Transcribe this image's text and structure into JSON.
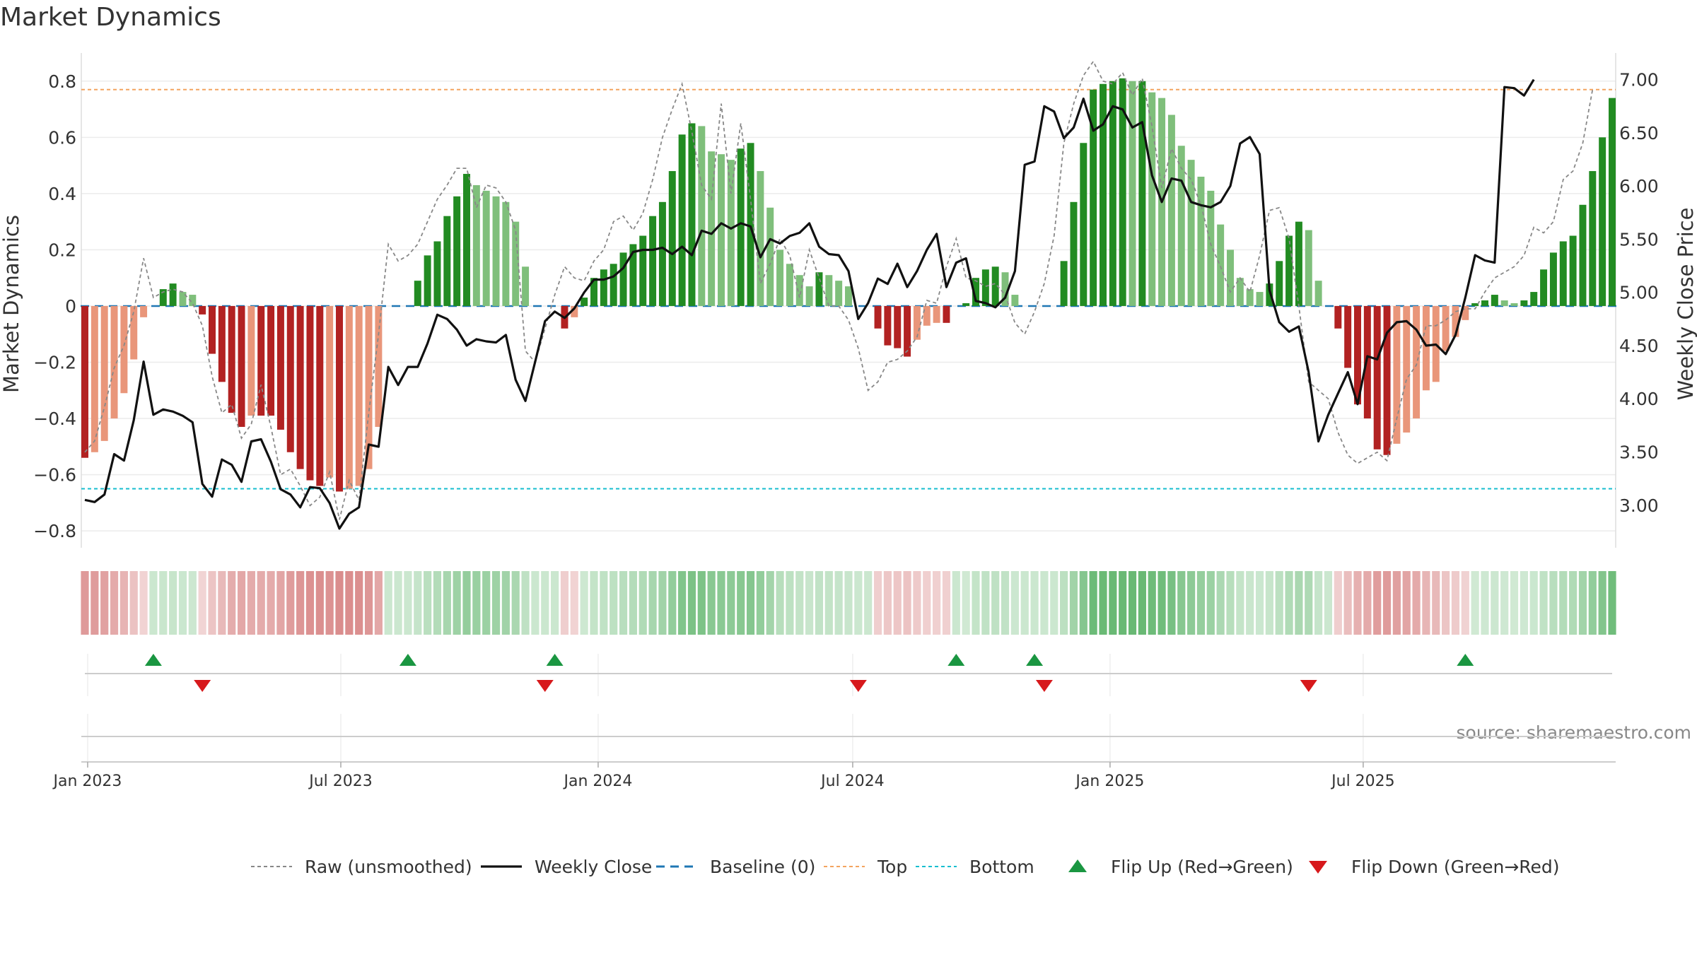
{
  "chart_data": {
    "type": "bar",
    "title": "Market Dynamics",
    "source_text": "source: sharemaestro.com",
    "left_axis": {
      "label": "Market Dynamics",
      "ticks": [
        0.8,
        0.6,
        0.4,
        0.2,
        0,
        -0.2,
        -0.4,
        -0.6,
        -0.8
      ],
      "tick_labels": [
        "0.8",
        "0.6",
        "0.4",
        "0.2",
        "0",
        "−0.2",
        "−0.4",
        "−0.6",
        "−0.8"
      ],
      "range": [
        -0.86,
        0.9
      ]
    },
    "right_axis": {
      "label": "Weekly Close Price",
      "ticks": [
        7.0,
        6.5,
        6.0,
        5.5,
        5.0,
        4.5,
        4.0,
        3.5,
        3.0
      ],
      "tick_labels": [
        "7.00",
        "6.50",
        "6.00",
        "5.50",
        "5.00",
        "4.50",
        "4.00",
        "3.50",
        "3.00"
      ],
      "range": [
        2.6,
        7.25
      ]
    },
    "x_axis": {
      "start": "2022-12-30",
      "step_days": 7,
      "ticks": [
        {
          "date": "2023-01-01",
          "label": "Jan 2023"
        },
        {
          "date": "2023-07-01",
          "label": "Jul 2023"
        },
        {
          "date": "2024-01-01",
          "label": "Jan 2024"
        },
        {
          "date": "2024-07-01",
          "label": "Jul 2024"
        },
        {
          "date": "2025-01-01",
          "label": "Jan 2025"
        },
        {
          "date": "2025-07-01",
          "label": "Jul 2025"
        }
      ]
    },
    "reference_lines": {
      "baseline": 0,
      "top": 0.77,
      "bottom": -0.65
    },
    "colors": {
      "strong_green": "#228b22",
      "light_green": "#7fbf7b",
      "strong_red": "#b22222",
      "light_red": "#e9967a",
      "raw": "#888888",
      "close": "#111111",
      "baseline": "#1f77b4",
      "top": "#f4a460",
      "bottom": "#17becf",
      "flip_up": "#1a9641",
      "flip_down": "#d7191c"
    },
    "series": [
      {
        "name": "Market Dynamics",
        "values": [
          -0.54,
          -0.52,
          -0.48,
          -0.4,
          -0.31,
          -0.19,
          -0.04,
          0.0,
          0.06,
          0.08,
          0.05,
          0.04,
          -0.03,
          -0.17,
          -0.27,
          -0.38,
          -0.43,
          -0.39,
          -0.39,
          -0.39,
          -0.44,
          -0.52,
          -0.58,
          -0.62,
          -0.64,
          -0.61,
          -0.66,
          -0.65,
          -0.64,
          -0.58,
          -0.43,
          0.0,
          0.0,
          0.0,
          0.09,
          0.18,
          0.23,
          0.32,
          0.39,
          0.47,
          0.43,
          0.41,
          0.39,
          0.37,
          0.3,
          0.14,
          0.0,
          0.0,
          0.0,
          -0.08,
          -0.04,
          0.03,
          0.1,
          0.13,
          0.15,
          0.19,
          0.22,
          0.25,
          0.32,
          0.37,
          0.48,
          0.61,
          0.65,
          0.64,
          0.55,
          0.54,
          0.52,
          0.56,
          0.58,
          0.48,
          0.35,
          0.2,
          0.15,
          0.11,
          0.07,
          0.12,
          0.11,
          0.09,
          0.07,
          0.0,
          0.0,
          -0.08,
          -0.14,
          -0.15,
          -0.18,
          -0.12,
          -0.07,
          -0.06,
          -0.06,
          0.0,
          0.01,
          0.1,
          0.13,
          0.14,
          0.12,
          0.04,
          0.0,
          0.0,
          0.0,
          0.0,
          0.16,
          0.37,
          0.58,
          0.77,
          0.79,
          0.8,
          0.81,
          0.8,
          0.8,
          0.76,
          0.74,
          0.68,
          0.57,
          0.52,
          0.46,
          0.41,
          0.29,
          0.2,
          0.1,
          0.06,
          0.05,
          0.08,
          0.16,
          0.25,
          0.3,
          0.27,
          0.09,
          0.0,
          -0.08,
          -0.22,
          -0.35,
          -0.4,
          -0.51,
          -0.53,
          -0.49,
          -0.45,
          -0.4,
          -0.3,
          -0.27,
          -0.16,
          -0.11,
          -0.05,
          0.01,
          0.02,
          0.04,
          0.02,
          0.01,
          0.02,
          0.05,
          0.13,
          0.19,
          0.23,
          0.25,
          0.36,
          0.48,
          0.6,
          0.74
        ]
      },
      {
        "name": "Raw (unsmoothed)",
        "values": [
          -0.52,
          -0.48,
          -0.36,
          -0.22,
          -0.14,
          -0.02,
          0.17,
          0.03,
          0.05,
          0.06,
          0.05,
          0.01,
          -0.07,
          -0.25,
          -0.38,
          -0.35,
          -0.47,
          -0.42,
          -0.28,
          -0.43,
          -0.6,
          -0.58,
          -0.64,
          -0.71,
          -0.68,
          -0.59,
          -0.76,
          -0.62,
          -0.69,
          -0.38,
          -0.1,
          0.22,
          0.16,
          0.18,
          0.22,
          0.3,
          0.38,
          0.43,
          0.49,
          0.49,
          0.35,
          0.43,
          0.42,
          0.37,
          0.27,
          -0.16,
          -0.2,
          -0.08,
          0.04,
          0.14,
          0.1,
          0.09,
          0.16,
          0.2,
          0.3,
          0.32,
          0.27,
          0.33,
          0.45,
          0.6,
          0.7,
          0.79,
          0.62,
          0.43,
          0.38,
          0.72,
          0.4,
          0.65,
          0.38,
          0.08,
          0.15,
          0.24,
          0.18,
          0.03,
          0.2,
          0.1,
          0.0,
          0.0,
          -0.05,
          -0.15,
          -0.3,
          -0.27,
          -0.2,
          -0.19,
          -0.16,
          -0.11,
          0.02,
          0.01,
          0.14,
          0.24,
          0.1,
          0.09,
          0.07,
          0.08,
          0.04,
          -0.06,
          -0.1,
          -0.02,
          0.08,
          0.25,
          0.58,
          0.72,
          0.82,
          0.87,
          0.8,
          0.79,
          0.83,
          0.75,
          0.81,
          0.64,
          0.42,
          0.56,
          0.49,
          0.45,
          0.36,
          0.22,
          0.14,
          0.05,
          0.1,
          0.05,
          0.18,
          0.34,
          0.35,
          0.24,
          0.0,
          -0.27,
          -0.3,
          -0.33,
          -0.45,
          -0.53,
          -0.56,
          -0.54,
          -0.52,
          -0.55,
          -0.4,
          -0.26,
          -0.21,
          -0.07,
          -0.07,
          -0.05,
          -0.02,
          -0.01,
          -0.01,
          0.05,
          0.1,
          0.12,
          0.14,
          0.18,
          0.28,
          0.26,
          0.3,
          0.45,
          0.48,
          0.58,
          0.77
        ]
      },
      {
        "name": "Weekly Close",
        "values": [
          3.05,
          3.03,
          3.1,
          3.48,
          3.42,
          3.8,
          4.35,
          3.85,
          3.9,
          3.88,
          3.84,
          3.78,
          3.2,
          3.08,
          3.43,
          3.38,
          3.22,
          3.6,
          3.62,
          3.41,
          3.15,
          3.1,
          2.98,
          3.17,
          3.16,
          3.02,
          2.78,
          2.92,
          2.98,
          3.57,
          3.55,
          4.3,
          4.13,
          4.3,
          4.3,
          4.52,
          4.79,
          4.75,
          4.65,
          4.5,
          4.56,
          4.54,
          4.53,
          4.6,
          4.18,
          3.98,
          4.35,
          4.73,
          4.82,
          4.76,
          4.85,
          5.0,
          5.12,
          5.12,
          5.15,
          5.23,
          5.38,
          5.4,
          5.4,
          5.42,
          5.36,
          5.43,
          5.35,
          5.58,
          5.55,
          5.65,
          5.6,
          5.65,
          5.62,
          5.33,
          5.5,
          5.46,
          5.53,
          5.56,
          5.65,
          5.43,
          5.36,
          5.35,
          5.2,
          4.75,
          4.9,
          5.13,
          5.08,
          5.27,
          5.05,
          5.2,
          5.4,
          5.55,
          5.05,
          5.28,
          5.32,
          4.92,
          4.9,
          4.86,
          4.95,
          5.2,
          6.2,
          6.23,
          6.75,
          6.7,
          6.45,
          6.55,
          6.82,
          6.52,
          6.58,
          6.75,
          6.72,
          6.55,
          6.6,
          6.1,
          5.85,
          6.07,
          6.05,
          5.85,
          5.82,
          5.8,
          5.85,
          6.0,
          6.4,
          6.46,
          6.3,
          5.02,
          4.72,
          4.63,
          4.68,
          4.25,
          3.6,
          3.85,
          4.05,
          4.25,
          3.95,
          4.4,
          4.37,
          4.62,
          4.72,
          4.73,
          4.65,
          4.5,
          4.51,
          4.42,
          4.6,
          4.95,
          5.35,
          5.3,
          5.28,
          6.93,
          6.92,
          6.85,
          7.0
        ]
      }
    ],
    "flip_up_indices": [
      7,
      33,
      48,
      89,
      97,
      141
    ],
    "flip_down_indices": [
      12,
      47,
      79,
      98,
      125
    ],
    "legend": [
      {
        "label": "Raw (unsmoothed)",
        "kind": "raw"
      },
      {
        "label": "Weekly Close",
        "kind": "close"
      },
      {
        "label": "Baseline (0)",
        "kind": "baseline"
      },
      {
        "label": "Top",
        "kind": "top"
      },
      {
        "label": "Bottom",
        "kind": "bottom"
      },
      {
        "label": "Flip Up (Red→Green)",
        "kind": "flip_up"
      },
      {
        "label": "Flip Down (Green→Red)",
        "kind": "flip_down"
      }
    ],
    "grid": true,
    "legend_position": "bottom-center"
  }
}
